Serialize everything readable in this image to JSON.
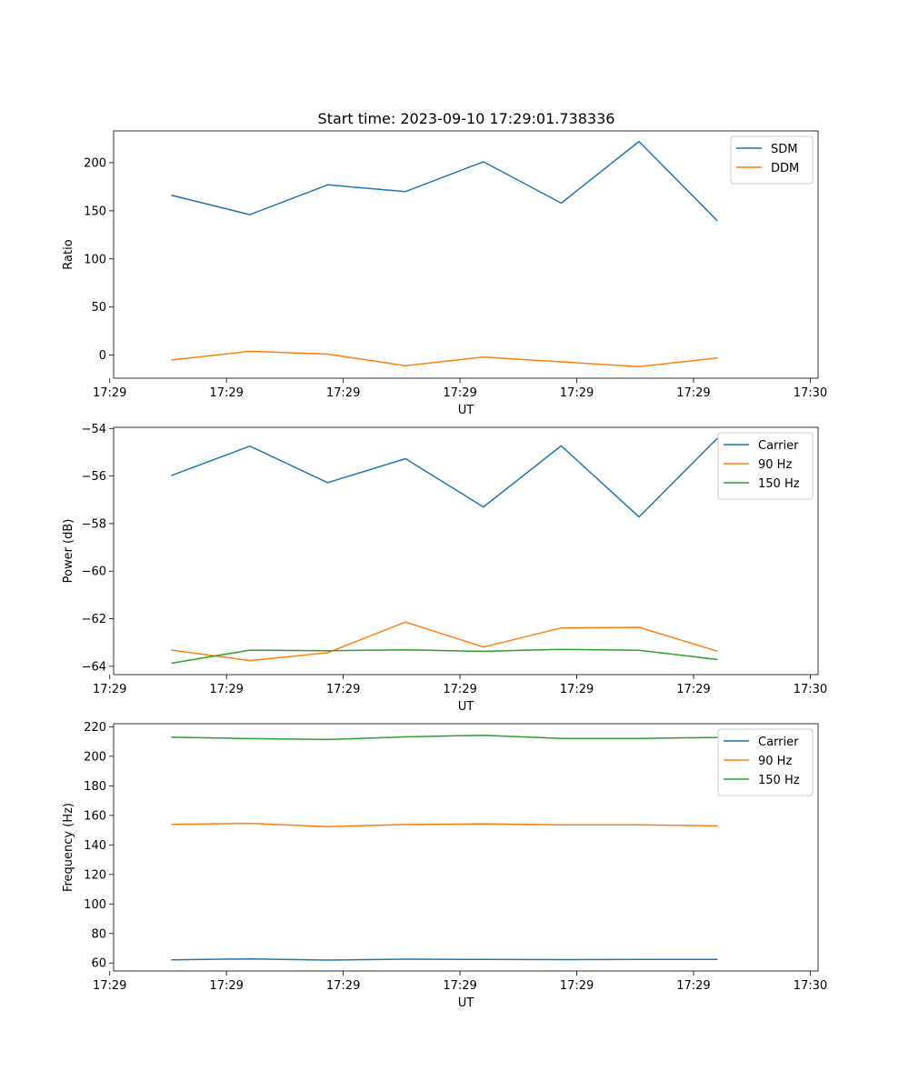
{
  "title": "Start time: 2023-09-10 17:29:01.738336",
  "chart_data": [
    {
      "type": "line",
      "xlabel": "UT",
      "ylabel": "Ratio",
      "x": [
        1,
        2,
        3,
        4,
        5,
        6,
        7,
        8
      ],
      "xlim": [
        0.25,
        9.3
      ],
      "xticks": [
        {
          "value": 0.2,
          "label": "17:29"
        },
        {
          "value": 1.7,
          "label": "17:29"
        },
        {
          "value": 3.2,
          "label": "17:29"
        },
        {
          "value": 4.7,
          "label": "17:29"
        },
        {
          "value": 6.2,
          "label": "17:29"
        },
        {
          "value": 7.7,
          "label": "17:29"
        },
        {
          "value": 9.2,
          "label": "17:30"
        }
      ],
      "ylim": [
        -24,
        233
      ],
      "yticks": [
        0,
        50,
        100,
        150,
        200
      ],
      "legend_position": "top-right",
      "series": [
        {
          "name": "SDM",
          "color": "#1f77b4",
          "values": [
            166,
            146,
            177,
            170,
            201,
            158,
            222,
            140
          ]
        },
        {
          "name": "DDM",
          "color": "#ff7f0e",
          "values": [
            -5,
            4,
            1,
            -11,
            -2,
            -7,
            -12,
            -3
          ]
        }
      ]
    },
    {
      "type": "line",
      "xlabel": "UT",
      "ylabel": "Power (dB)",
      "x": [
        1,
        2,
        3,
        4,
        5,
        6,
        7,
        8
      ],
      "xlim": [
        0.25,
        9.3
      ],
      "xticks": [
        {
          "value": 0.2,
          "label": "17:29"
        },
        {
          "value": 1.7,
          "label": "17:29"
        },
        {
          "value": 3.2,
          "label": "17:29"
        },
        {
          "value": 4.7,
          "label": "17:29"
        },
        {
          "value": 6.2,
          "label": "17:29"
        },
        {
          "value": 7.7,
          "label": "17:29"
        },
        {
          "value": 9.2,
          "label": "17:30"
        }
      ],
      "ylim": [
        -64.35,
        -53.95
      ],
      "yticks": [
        -64,
        -62,
        -60,
        -58,
        -56,
        -54
      ],
      "ytick_labels": [
        "−64",
        "−62",
        "−60",
        "−58",
        "−56",
        "−54"
      ],
      "legend_position": "top-right",
      "series": [
        {
          "name": "Carrier",
          "color": "#1f77b4",
          "values": [
            -55.97,
            -54.74,
            -56.28,
            -55.27,
            -57.3,
            -54.73,
            -57.72,
            -54.43
          ]
        },
        {
          "name": "90 Hz",
          "color": "#ff7f0e",
          "values": [
            -63.32,
            -63.76,
            -63.43,
            -62.14,
            -63.19,
            -62.39,
            -62.36,
            -63.36
          ]
        },
        {
          "name": "150 Hz",
          "color": "#2ca02c",
          "values": [
            -63.87,
            -63.32,
            -63.35,
            -63.31,
            -63.37,
            -63.29,
            -63.33,
            -63.71
          ]
        }
      ]
    },
    {
      "type": "line",
      "xlabel": "UT",
      "ylabel": "Frequency (Hz)",
      "x": [
        1,
        2,
        3,
        4,
        5,
        6,
        7,
        8
      ],
      "xlim": [
        0.25,
        9.3
      ],
      "xticks": [
        {
          "value": 0.2,
          "label": "17:29"
        },
        {
          "value": 1.7,
          "label": "17:29"
        },
        {
          "value": 3.2,
          "label": "17:29"
        },
        {
          "value": 4.7,
          "label": "17:29"
        },
        {
          "value": 6.2,
          "label": "17:29"
        },
        {
          "value": 7.7,
          "label": "17:29"
        },
        {
          "value": 9.2,
          "label": "17:30"
        }
      ],
      "ylim": [
        54.6,
        222.1
      ],
      "yticks": [
        60,
        80,
        100,
        120,
        140,
        160,
        180,
        200,
        220
      ],
      "legend_position": "top-right",
      "series": [
        {
          "name": "Carrier",
          "color": "#1f77b4",
          "values": [
            62.2,
            62.8,
            62.0,
            62.6,
            62.4,
            62.3,
            62.4,
            62.5
          ]
        },
        {
          "name": "90 Hz",
          "color": "#ff7f0e",
          "values": [
            154.0,
            154.6,
            152.4,
            153.8,
            154.3,
            153.6,
            153.6,
            152.9
          ]
        },
        {
          "name": "150 Hz",
          "color": "#2ca02c",
          "values": [
            212.9,
            212.0,
            211.4,
            213.2,
            214.3,
            212.1,
            212.1,
            212.8
          ]
        }
      ]
    }
  ]
}
